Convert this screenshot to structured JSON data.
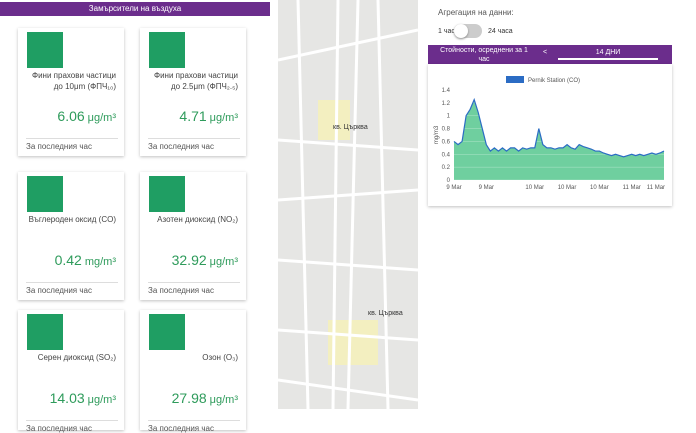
{
  "panel_title": "Замърсители на въздуха",
  "cards": [
    {
      "label": "Фини прахови частици до 10μm (ФПЧ₁₀)",
      "value": "6.06",
      "unit": "μg/m³",
      "note": "За последния час"
    },
    {
      "label": "Фини прахови частици до 2.5μm (ФПЧ₂.₅)",
      "value": "4.71",
      "unit": "μg/m³",
      "note": "За последния час"
    },
    {
      "label": "Въглероден оксид (CO)",
      "value": "0.42",
      "unit": "mg/m³",
      "note": "За последния час"
    },
    {
      "label": "Азотен диоксид (NO₂)",
      "value": "32.92",
      "unit": "μg/m³",
      "note": "За последния час"
    },
    {
      "label": "Серен диоксид (SO₂)",
      "value": "14.03",
      "unit": "μg/m³",
      "note": "За последния час"
    },
    {
      "label": "Озон (O₃)",
      "value": "27.98",
      "unit": "μg/m³",
      "note": "За последния час"
    }
  ],
  "map": {
    "labels": [
      "кв. Църква",
      "кв. Църква"
    ]
  },
  "aggregation": {
    "title": "Агрегация на данни:",
    "off": "1 час",
    "on": "24 часа"
  },
  "tabs": {
    "left": "Стойности, осреднени за 1 час",
    "arrow": "<",
    "right": "14 ДНИ"
  },
  "chart_data": {
    "type": "area",
    "y_label": "mg/m3",
    "categories": [
      "9 Mar",
      null,
      null,
      null,
      null,
      null,
      null,
      null,
      "9 Mar",
      null,
      null,
      null,
      null,
      null,
      null,
      null,
      null,
      null,
      null,
      null,
      "10 Mar",
      null,
      null,
      null,
      null,
      null,
      null,
      null,
      "10 Mar",
      null,
      null,
      null,
      null,
      null,
      null,
      null,
      "10 Mar",
      null,
      null,
      null,
      null,
      null,
      null,
      null,
      "11 Mar",
      null,
      null,
      null,
      null,
      null,
      "11 Mar",
      null,
      null
    ],
    "series": [
      {
        "name": "Pernik Station (CO)",
        "color": "#2b6cc4",
        "fill": "#6fcf9f",
        "values": [
          0.6,
          0.55,
          0.6,
          1.0,
          1.1,
          1.25,
          1.05,
          0.8,
          0.55,
          0.45,
          0.5,
          0.45,
          0.5,
          0.45,
          0.5,
          0.5,
          0.45,
          0.5,
          0.48,
          0.5,
          0.5,
          0.8,
          0.55,
          0.5,
          0.5,
          0.48,
          0.5,
          0.5,
          0.55,
          0.5,
          0.48,
          0.55,
          0.52,
          0.5,
          0.48,
          0.45,
          0.45,
          0.42,
          0.4,
          0.38,
          0.4,
          0.38,
          0.36,
          0.38,
          0.4,
          0.38,
          0.4,
          0.38,
          0.4,
          0.42,
          0.4,
          0.42,
          0.45
        ]
      }
    ],
    "ylim": [
      0,
      1.4
    ],
    "yticks": [
      0,
      0.2,
      0.4,
      0.6,
      0.8,
      1,
      1.2,
      1.4
    ],
    "grid": true
  }
}
